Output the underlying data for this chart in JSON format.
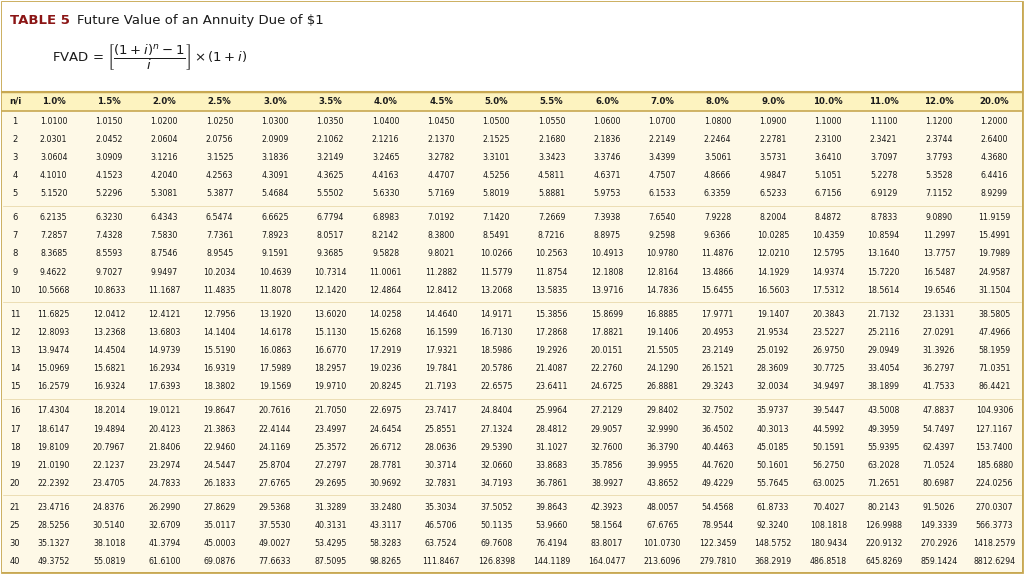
{
  "title_bold": "TABLE 5",
  "title_rest": "Future Value of an Annuity Due of $1",
  "col_headers": [
    "n/i",
    "1.0%",
    "1.5%",
    "2.0%",
    "2.5%",
    "3.0%",
    "3.5%",
    "4.0%",
    "4.5%",
    "5.0%",
    "5.5%",
    "6.0%",
    "7.0%",
    "8.0%",
    "9.0%",
    "10.0%",
    "11.0%",
    "12.0%",
    "20.0%"
  ],
  "row_labels": [
    "1",
    "2",
    "3",
    "4",
    "5",
    "6",
    "7",
    "8",
    "9",
    "10",
    "11",
    "12",
    "13",
    "14",
    "15",
    "16",
    "17",
    "18",
    "19",
    "20",
    "21",
    "25",
    "30",
    "40"
  ],
  "gold": "#c8a852",
  "light_yellow": "#fef9e7",
  "white": "#ffffff",
  "dark_red": "#8b1515",
  "text_color": "#1a1a1a",
  "header_row_bg": "#fdf5d0",
  "data": [
    [
      "1.0100",
      "1.0150",
      "1.0200",
      "1.0250",
      "1.0300",
      "1.0350",
      "1.0400",
      "1.0450",
      "1.0500",
      "1.0550",
      "1.0600",
      "1.0700",
      "1.0800",
      "1.0900",
      "1.1000",
      "1.1100",
      "1.1200",
      "1.2000"
    ],
    [
      "2.0301",
      "2.0452",
      "2.0604",
      "2.0756",
      "2.0909",
      "2.1062",
      "2.1216",
      "2.1370",
      "2.1525",
      "2.1680",
      "2.1836",
      "2.2149",
      "2.2464",
      "2.2781",
      "2.3100",
      "2.3421",
      "2.3744",
      "2.6400"
    ],
    [
      "3.0604",
      "3.0909",
      "3.1216",
      "3.1525",
      "3.1836",
      "3.2149",
      "3.2465",
      "3.2782",
      "3.3101",
      "3.3423",
      "3.3746",
      "3.4399",
      "3.5061",
      "3.5731",
      "3.6410",
      "3.7097",
      "3.7793",
      "4.3680"
    ],
    [
      "4.1010",
      "4.1523",
      "4.2040",
      "4.2563",
      "4.3091",
      "4.3625",
      "4.4163",
      "4.4707",
      "4.5256",
      "4.5811",
      "4.6371",
      "4.7507",
      "4.8666",
      "4.9847",
      "5.1051",
      "5.2278",
      "5.3528",
      "6.4416"
    ],
    [
      "5.1520",
      "5.2296",
      "5.3081",
      "5.3877",
      "5.4684",
      "5.5502",
      "5.6330",
      "5.7169",
      "5.8019",
      "5.8881",
      "5.9753",
      "6.1533",
      "6.3359",
      "6.5233",
      "6.7156",
      "6.9129",
      "7.1152",
      "8.9299"
    ],
    [
      "6.2135",
      "6.3230",
      "6.4343",
      "6.5474",
      "6.6625",
      "6.7794",
      "6.8983",
      "7.0192",
      "7.1420",
      "7.2669",
      "7.3938",
      "7.6540",
      "7.9228",
      "8.2004",
      "8.4872",
      "8.7833",
      "9.0890",
      "11.9159"
    ],
    [
      "7.2857",
      "7.4328",
      "7.5830",
      "7.7361",
      "7.8923",
      "8.0517",
      "8.2142",
      "8.3800",
      "8.5491",
      "8.7216",
      "8.8975",
      "9.2598",
      "9.6366",
      "10.0285",
      "10.4359",
      "10.8594",
      "11.2997",
      "15.4991"
    ],
    [
      "8.3685",
      "8.5593",
      "8.7546",
      "8.9545",
      "9.1591",
      "9.3685",
      "9.5828",
      "9.8021",
      "10.0266",
      "10.2563",
      "10.4913",
      "10.9780",
      "11.4876",
      "12.0210",
      "12.5795",
      "13.1640",
      "13.7757",
      "19.7989"
    ],
    [
      "9.4622",
      "9.7027",
      "9.9497",
      "10.2034",
      "10.4639",
      "10.7314",
      "11.0061",
      "11.2882",
      "11.5779",
      "11.8754",
      "12.1808",
      "12.8164",
      "13.4866",
      "14.1929",
      "14.9374",
      "15.7220",
      "16.5487",
      "24.9587"
    ],
    [
      "10.5668",
      "10.8633",
      "11.1687",
      "11.4835",
      "11.8078",
      "12.1420",
      "12.4864",
      "12.8412",
      "13.2068",
      "13.5835",
      "13.9716",
      "14.7836",
      "15.6455",
      "16.5603",
      "17.5312",
      "18.5614",
      "19.6546",
      "31.1504"
    ],
    [
      "11.6825",
      "12.0412",
      "12.4121",
      "12.7956",
      "13.1920",
      "13.6020",
      "14.0258",
      "14.4640",
      "14.9171",
      "15.3856",
      "15.8699",
      "16.8885",
      "17.9771",
      "19.1407",
      "20.3843",
      "21.7132",
      "23.1331",
      "38.5805"
    ],
    [
      "12.8093",
      "13.2368",
      "13.6803",
      "14.1404",
      "14.6178",
      "15.1130",
      "15.6268",
      "16.1599",
      "16.7130",
      "17.2868",
      "17.8821",
      "19.1406",
      "20.4953",
      "21.9534",
      "23.5227",
      "25.2116",
      "27.0291",
      "47.4966"
    ],
    [
      "13.9474",
      "14.4504",
      "14.9739",
      "15.5190",
      "16.0863",
      "16.6770",
      "17.2919",
      "17.9321",
      "18.5986",
      "19.2926",
      "20.0151",
      "21.5505",
      "23.2149",
      "25.0192",
      "26.9750",
      "29.0949",
      "31.3926",
      "58.1959"
    ],
    [
      "15.0969",
      "15.6821",
      "16.2934",
      "16.9319",
      "17.5989",
      "18.2957",
      "19.0236",
      "19.7841",
      "20.5786",
      "21.4087",
      "22.2760",
      "24.1290",
      "26.1521",
      "28.3609",
      "30.7725",
      "33.4054",
      "36.2797",
      "71.0351"
    ],
    [
      "16.2579",
      "16.9324",
      "17.6393",
      "18.3802",
      "19.1569",
      "19.9710",
      "20.8245",
      "21.7193",
      "22.6575",
      "23.6411",
      "24.6725",
      "26.8881",
      "29.3243",
      "32.0034",
      "34.9497",
      "38.1899",
      "41.7533",
      "86.4421"
    ],
    [
      "17.4304",
      "18.2014",
      "19.0121",
      "19.8647",
      "20.7616",
      "21.7050",
      "22.6975",
      "23.7417",
      "24.8404",
      "25.9964",
      "27.2129",
      "29.8402",
      "32.7502",
      "35.9737",
      "39.5447",
      "43.5008",
      "47.8837",
      "104.9306"
    ],
    [
      "18.6147",
      "19.4894",
      "20.4123",
      "21.3863",
      "22.4144",
      "23.4997",
      "24.6454",
      "25.8551",
      "27.1324",
      "28.4812",
      "29.9057",
      "32.9990",
      "36.4502",
      "40.3013",
      "44.5992",
      "49.3959",
      "54.7497",
      "127.1167"
    ],
    [
      "19.8109",
      "20.7967",
      "21.8406",
      "22.9460",
      "24.1169",
      "25.3572",
      "26.6712",
      "28.0636",
      "29.5390",
      "31.1027",
      "32.7600",
      "36.3790",
      "40.4463",
      "45.0185",
      "50.1591",
      "55.9395",
      "62.4397",
      "153.7400"
    ],
    [
      "21.0190",
      "22.1237",
      "23.2974",
      "24.5447",
      "25.8704",
      "27.2797",
      "28.7781",
      "30.3714",
      "32.0660",
      "33.8683",
      "35.7856",
      "39.9955",
      "44.7620",
      "50.1601",
      "56.2750",
      "63.2028",
      "71.0524",
      "185.6880"
    ],
    [
      "22.2392",
      "23.4705",
      "24.7833",
      "26.1833",
      "27.6765",
      "29.2695",
      "30.9692",
      "32.7831",
      "34.7193",
      "36.7861",
      "38.9927",
      "43.8652",
      "49.4229",
      "55.7645",
      "63.0025",
      "71.2651",
      "80.6987",
      "224.0256"
    ],
    [
      "23.4716",
      "24.8376",
      "26.2990",
      "27.8629",
      "29.5368",
      "31.3289",
      "33.2480",
      "35.3034",
      "37.5052",
      "39.8643",
      "42.3923",
      "48.0057",
      "54.4568",
      "61.8733",
      "70.4027",
      "80.2143",
      "91.5026",
      "270.0307"
    ],
    [
      "28.5256",
      "30.5140",
      "32.6709",
      "35.0117",
      "37.5530",
      "40.3131",
      "43.3117",
      "46.5706",
      "50.1135",
      "53.9660",
      "58.1564",
      "67.6765",
      "78.9544",
      "92.3240",
      "108.1818",
      "126.9988",
      "149.3339",
      "566.3773"
    ],
    [
      "35.1327",
      "38.1018",
      "41.3794",
      "45.0003",
      "49.0027",
      "53.4295",
      "58.3283",
      "63.7524",
      "69.7608",
      "76.4194",
      "83.8017",
      "101.0730",
      "122.3459",
      "148.5752",
      "180.9434",
      "220.9132",
      "270.2926",
      "1418.2579"
    ],
    [
      "49.3752",
      "55.0819",
      "61.6100",
      "69.0876",
      "77.6633",
      "87.5095",
      "98.8265",
      "111.8467",
      "126.8398",
      "144.1189",
      "164.0477",
      "213.6096",
      "279.7810",
      "368.2919",
      "486.8518",
      "645.8269",
      "859.1424",
      "8812.6294"
    ]
  ]
}
